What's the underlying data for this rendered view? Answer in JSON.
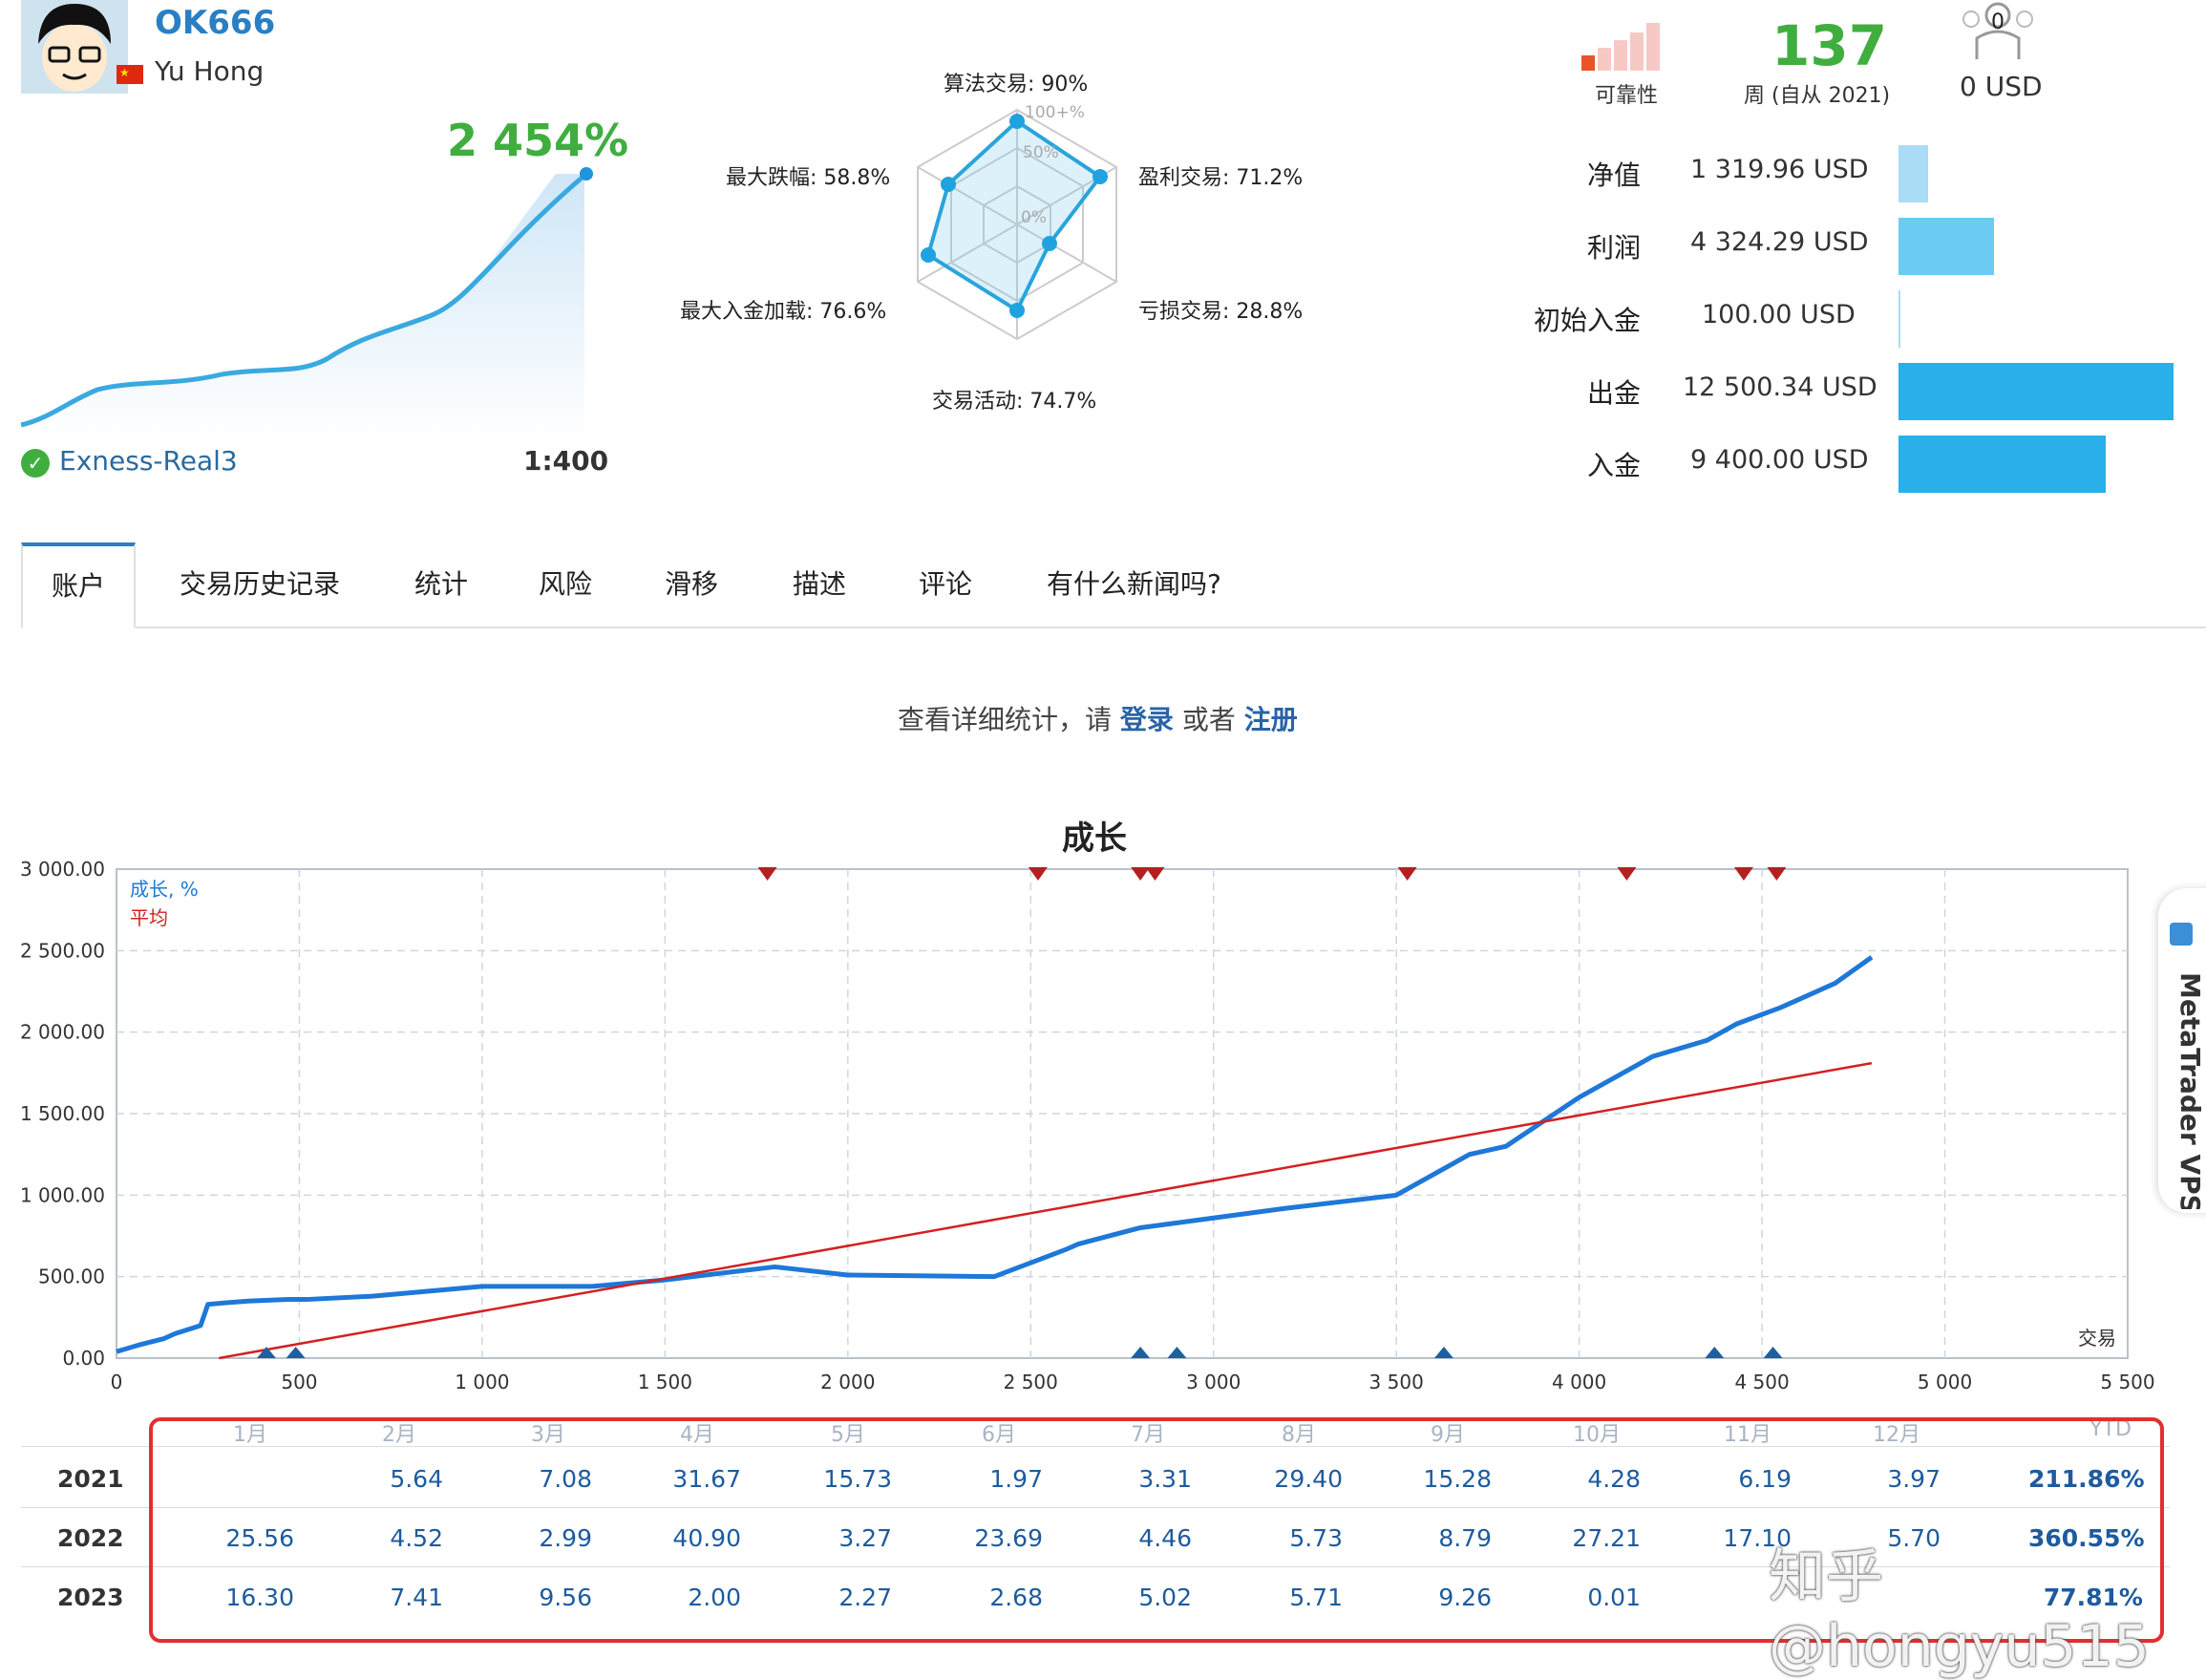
{
  "profile": {
    "username": "OK666",
    "fullname": "Yu Hong",
    "growth_pct": "2 454%",
    "broker": "Exness-Real3",
    "leverage": "1:400"
  },
  "radar": {
    "algo": "算法交易: 90%",
    "profit_trades": "盈利交易: 71.2%",
    "loss_trades": "亏损交易: 28.8%",
    "activity": "交易活动: 74.7%",
    "max_deposit_load": "最大入金加载: 76.6%",
    "max_drawdown": "最大跌幅: 58.8%",
    "scale_100": "100+%",
    "scale_50": "50%",
    "scale_0": "0%"
  },
  "stats": {
    "reliability_label": "可靠性",
    "weeks_value": "137",
    "weeks_label": "周 (自从 2021)",
    "subscribers_count": "0",
    "subscribers_value": "0 USD"
  },
  "finance": [
    {
      "label": "净值",
      "value": "1 319.96 USD",
      "ratio": 0.106
    },
    {
      "label": "利润",
      "value": "4 324.29 USD",
      "ratio": 0.346
    },
    {
      "label": "初始入金",
      "value": "100.00 USD",
      "ratio": 0.008
    },
    {
      "label": "出金",
      "value": "12 500.34 USD",
      "ratio": 1.0
    },
    {
      "label": "入金",
      "value": "9 400.00 USD",
      "ratio": 0.752
    }
  ],
  "tabs": [
    "账户",
    "交易历史记录",
    "统计",
    "风险",
    "滑移",
    "描述",
    "评论",
    "有什么新闻吗?"
  ],
  "login_prompt": {
    "text": "查看详细统计，请",
    "login": "登录",
    "or": "或者",
    "register": "注册"
  },
  "chart_data": {
    "type": "line",
    "title": "成长",
    "xlabel": "交易",
    "ylabel": "",
    "xlim": [
      0,
      5500
    ],
    "ylim": [
      0,
      3000
    ],
    "x_ticks": [
      "0",
      "500",
      "1 000",
      "1 500",
      "2 000",
      "2 500",
      "3 000",
      "3 500",
      "4 000",
      "4 500",
      "5 000",
      "5 500"
    ],
    "y_ticks": [
      "0.00",
      "500.00",
      "1 000.00",
      "1 500.00",
      "2 000.00",
      "2 500.00",
      "3 000.00"
    ],
    "legend": [
      "成长, %",
      "平均"
    ],
    "series": [
      {
        "name": "成长, %",
        "color": "#1e78d8",
        "x": [
          0,
          60,
          130,
          160,
          230,
          250,
          300,
          360,
          470,
          520,
          700,
          1000,
          1300,
          1500,
          1800,
          2000,
          2400,
          2600,
          2630,
          2800,
          3000,
          3200,
          3500,
          3700,
          3800,
          4000,
          4200,
          4350,
          4430,
          4550,
          4700,
          4800
        ],
        "y": [
          40,
          80,
          120,
          150,
          200,
          330,
          340,
          350,
          360,
          360,
          380,
          440,
          440,
          480,
          560,
          510,
          500,
          670,
          700,
          800,
          860,
          920,
          1000,
          1250,
          1300,
          1600,
          1850,
          1950,
          2050,
          2150,
          2300,
          2460
        ]
      },
      {
        "name": "平均",
        "color": "#d42020",
        "x": [
          280,
          4800
        ],
        "y": [
          0,
          1810
        ]
      }
    ],
    "top_markers_x": [
      1780,
      2520,
      2800,
      2840,
      3530,
      4130,
      4450,
      4540
    ],
    "bottom_markers_x": [
      410,
      490,
      2800,
      2900,
      3630,
      4370,
      4530
    ]
  },
  "monthly": {
    "headers": [
      "1月",
      "2月",
      "3月",
      "4月",
      "5月",
      "6月",
      "7月",
      "8月",
      "9月",
      "10月",
      "11月",
      "12月",
      "YTD"
    ],
    "rows": [
      {
        "year": "2021",
        "values": [
          "",
          "5.64",
          "7.08",
          "31.67",
          "15.73",
          "1.97",
          "3.31",
          "29.40",
          "15.28",
          "4.28",
          "6.19",
          "3.97"
        ],
        "ytd": "211.86%"
      },
      {
        "year": "2022",
        "values": [
          "25.56",
          "4.52",
          "2.99",
          "40.90",
          "3.27",
          "23.69",
          "4.46",
          "5.73",
          "8.79",
          "27.21",
          "17.10",
          "5.70"
        ],
        "ytd": "360.55%"
      },
      {
        "year": "2023",
        "values": [
          "16.30",
          "7.41",
          "9.56",
          "2.00",
          "2.27",
          "2.68",
          "5.02",
          "5.71",
          "9.26",
          "0.01",
          "",
          ""
        ],
        "ytd": "77.81%"
      }
    ]
  },
  "side_tab": "MetaTrader VPS",
  "watermark": "知乎 @hongyu515"
}
